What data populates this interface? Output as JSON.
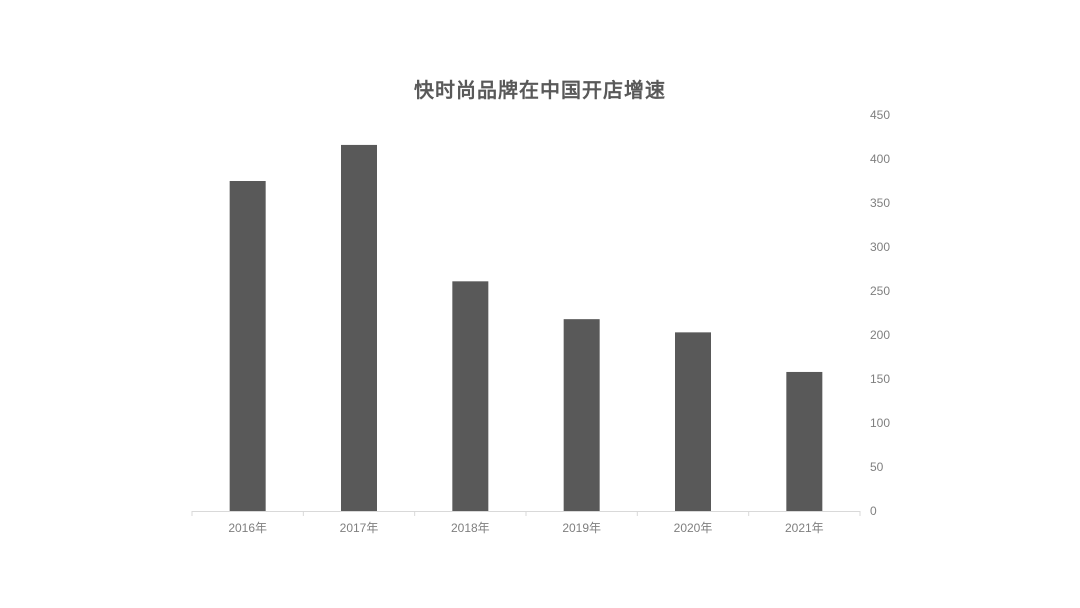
{
  "chart_data": {
    "type": "bar",
    "title": "快时尚品牌在中国开店增速",
    "categories": [
      "2016年",
      "2017年",
      "2018年",
      "2019年",
      "2020年",
      "2021年"
    ],
    "values": [
      375,
      416,
      261,
      218,
      203,
      158
    ],
    "xlabel": "",
    "ylabel": "",
    "ylim": [
      0,
      450
    ],
    "yticks": [
      "0",
      "50",
      "100",
      "150",
      "200",
      "250",
      "300",
      "350",
      "400",
      "450"
    ],
    "y_axis_position": "right",
    "grid": false,
    "legend": "none",
    "bar_color": "#595959"
  }
}
